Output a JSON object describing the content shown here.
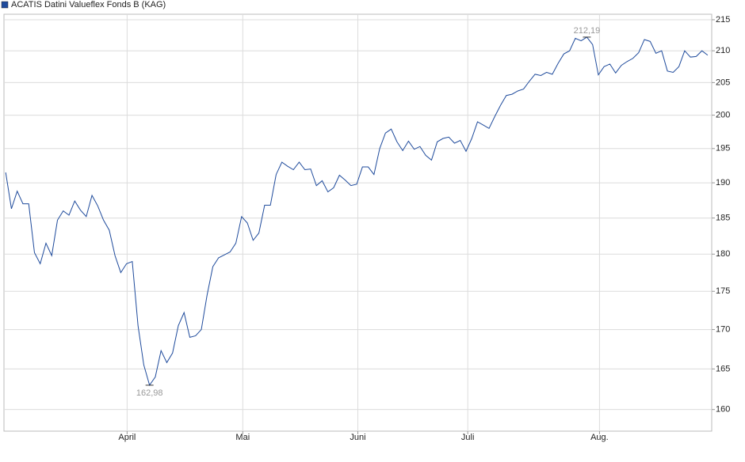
{
  "chart_data": {
    "type": "line",
    "log_y": true,
    "grid": true,
    "legend": "top-left",
    "x": [
      0,
      1,
      2,
      3,
      4,
      5,
      6,
      7,
      8,
      9,
      10,
      11,
      12,
      13,
      14,
      15,
      16,
      17,
      18,
      19,
      20,
      21,
      22,
      23,
      24,
      25,
      26,
      27,
      28,
      29,
      30,
      31,
      32,
      33,
      34,
      35,
      36,
      37,
      38,
      39,
      40,
      41,
      42,
      43,
      44,
      45,
      46,
      47,
      48,
      49,
      50,
      51,
      52,
      53,
      54,
      55,
      56,
      57,
      58,
      59,
      60,
      61,
      62,
      63,
      64,
      65,
      66,
      67,
      68,
      69,
      70,
      71,
      72,
      73,
      74,
      75,
      76,
      77,
      78,
      79,
      80,
      81,
      82,
      83,
      84,
      85,
      86,
      87,
      88,
      89,
      90,
      91,
      92,
      93,
      94,
      95,
      96,
      97,
      98,
      99,
      100,
      101,
      102,
      103,
      104,
      105,
      106,
      107,
      108,
      109,
      110,
      111,
      112,
      113,
      114,
      115,
      116,
      117,
      118,
      119,
      120,
      121,
      122
    ],
    "series": [
      {
        "name": "ACATIS Datini Valueflex Fonds B (KAG)",
        "color": "#1f4b9c",
        "values": [
          191.5,
          186.3,
          188.8,
          187.0,
          187.0,
          180.2,
          178.7,
          181.5,
          179.8,
          184.7,
          186.0,
          185.4,
          187.4,
          186.1,
          185.2,
          188.2,
          186.7,
          184.7,
          183.3,
          179.8,
          177.5,
          178.7,
          179.0,
          170.5,
          165.5,
          162.98,
          164.0,
          167.3,
          165.8,
          167.0,
          170.5,
          172.2,
          169.0,
          169.2,
          170.0,
          174.5,
          178.3,
          179.5,
          179.9,
          180.3,
          181.5,
          185.2,
          184.3,
          181.9,
          182.9,
          186.8,
          186.8,
          191.2,
          193.0,
          192.4,
          191.9,
          193.0,
          191.9,
          192.0,
          189.6,
          190.3,
          188.7,
          189.3,
          191.1,
          190.4,
          189.6,
          189.8,
          192.3,
          192.3,
          191.2,
          195.0,
          197.3,
          197.9,
          196.0,
          194.7,
          196.1,
          194.9,
          195.3,
          194.0,
          193.3,
          196.0,
          196.5,
          196.7,
          195.8,
          196.2,
          194.6,
          196.5,
          199.0,
          198.5,
          198.0,
          199.8,
          201.5,
          203.0,
          203.2,
          203.7,
          204.0,
          205.2,
          206.3,
          206.1,
          206.6,
          206.3,
          208.0,
          209.5,
          210.0,
          212.0,
          211.6,
          212.19,
          211.0,
          206.2,
          207.5,
          207.9,
          206.5,
          207.7,
          208.3,
          208.8,
          209.7,
          211.8,
          211.5,
          209.6,
          210.0,
          206.8,
          206.6,
          207.5,
          210.0,
          209.0,
          209.1,
          210.0,
          209.3
        ]
      }
    ],
    "annotations": [
      {
        "x": 101,
        "value": 212.19,
        "label": "212,19"
      },
      {
        "x": 25,
        "value": 162.98,
        "label": "162,98"
      }
    ],
    "xlim": [
      -0.3,
      122.7
    ],
    "xticks": [
      {
        "value": 21.1,
        "label": "April"
      },
      {
        "value": 41.2,
        "label": "Mai"
      },
      {
        "value": 61.2,
        "label": "Juni"
      },
      {
        "value": 80.3,
        "label": "Juli"
      },
      {
        "value": 103.2,
        "label": "Aug."
      }
    ],
    "ylim": [
      157.4,
      215.9
    ],
    "yticks": [
      160,
      165,
      170,
      175,
      180,
      185,
      190,
      195,
      200,
      205,
      210,
      215
    ]
  }
}
